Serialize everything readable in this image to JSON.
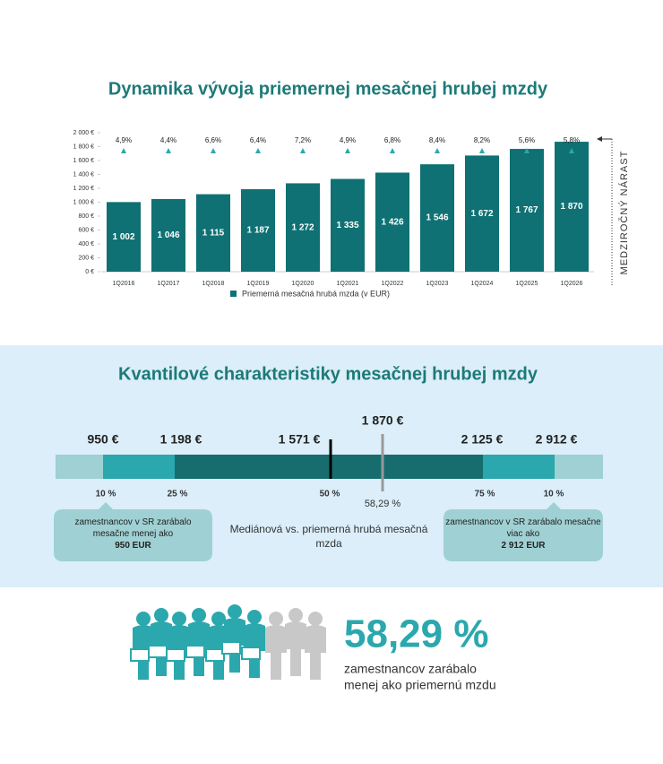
{
  "chart_data": {
    "type": "bar",
    "title": "Dynamika vývoja priemernej mesačnej hrubej mzdy",
    "categories": [
      "1Q2016",
      "1Q2017",
      "1Q2018",
      "1Q2019",
      "1Q2020",
      "1Q2021",
      "1Q2022",
      "1Q2023",
      "1Q2024",
      "1Q2025",
      "1Q2026"
    ],
    "series": [
      {
        "name": "Priemerná mesačná hrubá mzda (v EUR)",
        "color": "#0f7173",
        "values": [
          1002,
          1046,
          1115,
          1187,
          1272,
          1335,
          1426,
          1546,
          1672,
          1767,
          1870
        ],
        "value_labels": [
          "1 002",
          "1 046",
          "1 115",
          "1 187",
          "1 272",
          "1 335",
          "1 426",
          "1 546",
          "1 672",
          "1 767",
          "1 870"
        ]
      }
    ],
    "growth": {
      "name": "MEDZIROČNÝ NÁRAST",
      "color": "#2aa8ad",
      "values": [
        4.9,
        4.4,
        6.6,
        6.4,
        7.2,
        4.9,
        6.8,
        8.4,
        8.2,
        5.6,
        5.8
      ],
      "value_labels": [
        "4,9%",
        "4,4%",
        "6,6%",
        "6,4%",
        "7,2%",
        "4,9%",
        "6,8%",
        "8,4%",
        "8,2%",
        "5,6%",
        "5,8%"
      ]
    },
    "ylim": [
      0,
      2000
    ],
    "yticks": [
      {
        "value": 0,
        "label": "0 €"
      },
      {
        "value": 200,
        "label": "200 €"
      },
      {
        "value": 400,
        "label": "400 €"
      },
      {
        "value": 600,
        "label": "600 €"
      },
      {
        "value": 800,
        "label": "800 €"
      },
      {
        "value": 1000,
        "label": "1 000 €"
      },
      {
        "value": 1200,
        "label": "1 200 €"
      },
      {
        "value": 1400,
        "label": "1 400 €"
      },
      {
        "value": 1600,
        "label": "1 600 €"
      },
      {
        "value": 1800,
        "label": "1 800 €"
      },
      {
        "value": 2000,
        "label": "2 000 €"
      }
    ],
    "legend": "bottom"
  },
  "quantiles": {
    "title": "Kvantilové charakteristiky mesačnej hrubej mzdy",
    "amounts": [
      "950 €",
      "1 198 €",
      "1 571 €",
      "1 870 €",
      "2 125 €",
      "2 912 €"
    ],
    "percents": [
      "10 %",
      "25 %",
      "50 %",
      "58,29 %",
      "75 %",
      "10 %"
    ],
    "left_box": {
      "text": "zamestnancov v SR zarábalo mesačne menej ako",
      "amount": "950 EUR"
    },
    "center_text": "Mediánová vs. priemerná hrubá mesačná mzda",
    "right_box": {
      "text": "zamestnancov v SR zarábalo mesačne viac ako",
      "amount": "2 912 EUR"
    }
  },
  "summary": {
    "value": "58,29 %",
    "line1": "zamestnancov zarábalo",
    "line2": "menej ako priemernú mzdu"
  }
}
